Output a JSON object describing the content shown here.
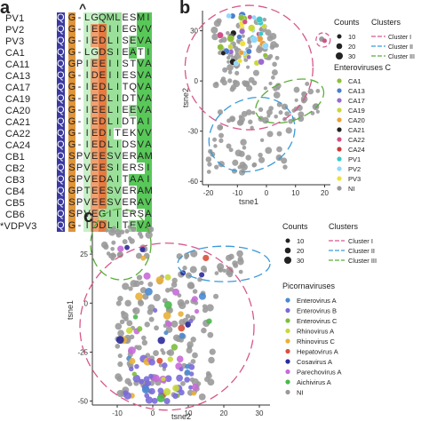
{
  "panels": {
    "a": "a",
    "b": "b",
    "c": "c"
  },
  "alignment": {
    "caret": "^",
    "rows": [
      {
        "name": "PV1",
        "seq": "Q G-LGQMLESMI",
        "star": ""
      },
      {
        "name": "PV2",
        "seq": "Q G-IEDIIEGVV",
        "star": ""
      },
      {
        "name": "PV3",
        "seq": "Q G-IEDLISEVA",
        "star": ""
      },
      {
        "name": "CA1",
        "seq": "Q G-LGDSIEATI",
        "star": ""
      },
      {
        "name": "CA11",
        "seq": "Q GPIEEIISTVA",
        "star": ""
      },
      {
        "name": "CA13",
        "seq": "Q G-IDEIIESVA",
        "star": ""
      },
      {
        "name": "CA17",
        "seq": "Q G-IEDLITQVA",
        "star": ""
      },
      {
        "name": "CA19",
        "seq": "Q G-IEDLIDTVA",
        "star": ""
      },
      {
        "name": "CA20",
        "seq": "Q G-IEELIEEVA",
        "star": ""
      },
      {
        "name": "CA21",
        "seq": "Q G-IEDLIDTAI",
        "star": ""
      },
      {
        "name": "CA22",
        "seq": "Q G-IEDITEKVV",
        "star": ""
      },
      {
        "name": "CA24",
        "seq": "Q G-IEDLIDSVA",
        "star": ""
      },
      {
        "name": "CB1",
        "seq": "Q SPVEESVERAM",
        "star": ""
      },
      {
        "name": "CB2",
        "seq": "Q SPVEESIERSI",
        "star": ""
      },
      {
        "name": "CB3",
        "seq": "Q GPVEDAITAAI",
        "star": ""
      },
      {
        "name": "CB4",
        "seq": "Q GPTEESVERAM",
        "star": ""
      },
      {
        "name": "CB5",
        "seq": "Q SPVEESVERAV",
        "star": ""
      },
      {
        "name": "CB6",
        "seq": "Q SPVEGIIERSA",
        "star": ""
      },
      {
        "name": "VDPV3",
        "seq": "Q G-IDDLITEVA",
        "star": "*"
      }
    ]
  },
  "panel_b": {
    "xlabel": "tsne1",
    "ylabel": "tsne2",
    "xticks": [
      "-20",
      "-10",
      "0",
      "10",
      "20"
    ],
    "yticks": [
      "30",
      "0",
      "-30",
      "-60"
    ],
    "legend_counts_title": "Counts",
    "legend_counts": [
      "10",
      "20",
      "30"
    ],
    "legend_clusters_title": "Clusters",
    "legend_clusters": [
      {
        "label": "Cluster I",
        "color": "#d6588a"
      },
      {
        "label": "Cluster II",
        "color": "#3a9ad9"
      },
      {
        "label": "Cluster III",
        "color": "#5aae3a"
      }
    ],
    "legend_species_title": "Enteroviruses C",
    "legend_species": [
      {
        "label": "CA1",
        "color": "#8fbf3a"
      },
      {
        "label": "CA13",
        "color": "#4a7fd0"
      },
      {
        "label": "CA17",
        "color": "#9a6ad0"
      },
      {
        "label": "CA19",
        "color": "#c8d83a"
      },
      {
        "label": "CA20",
        "color": "#e8a23a"
      },
      {
        "label": "CA21",
        "color": "#222222"
      },
      {
        "label": "CA22",
        "color": "#d0508a"
      },
      {
        "label": "CA24",
        "color": "#c83a3a"
      },
      {
        "label": "PV1",
        "color": "#3ac8c8"
      },
      {
        "label": "PV2",
        "color": "#8fd8ff"
      },
      {
        "label": "PV3",
        "color": "#f0e03a"
      },
      {
        "label": "NI",
        "color": "#999999"
      }
    ]
  },
  "panel_c": {
    "xlabel": "tsne2",
    "ylabel": "tsne1",
    "xticks": [
      "-10",
      "0",
      "10",
      "20",
      "30"
    ],
    "yticks": [
      "25",
      "0",
      "-25",
      "-50"
    ],
    "legend_counts_title": "Counts",
    "legend_counts": [
      "10",
      "20",
      "30"
    ],
    "legend_clusters_title": "Clusters",
    "legend_clusters": [
      {
        "label": "Cluster I",
        "color": "#d6588a"
      },
      {
        "label": "Cluster II",
        "color": "#3a9ad9"
      },
      {
        "label": "Cluster III",
        "color": "#5aae3a"
      }
    ],
    "legend_species_title": "Picornaviruses",
    "legend_species": [
      {
        "label": "Enterovirus A",
        "color": "#4a8ad0"
      },
      {
        "label": "Enterovirus B",
        "color": "#7a6ad8"
      },
      {
        "label": "Enterovirus C",
        "color": "#7abf3a"
      },
      {
        "label": "Rhinovirus A",
        "color": "#c8d83a"
      },
      {
        "label": "Rhinovirus C",
        "color": "#e8b03a"
      },
      {
        "label": "Hepatovirus A",
        "color": "#d8503a"
      },
      {
        "label": "Cosavirus A",
        "color": "#2a2a9a"
      },
      {
        "label": "Parechovirus A",
        "color": "#c86ad8"
      },
      {
        "label": "Aichivirus A",
        "color": "#4ab84a"
      },
      {
        "label": "NI",
        "color": "#999999"
      }
    ]
  }
}
